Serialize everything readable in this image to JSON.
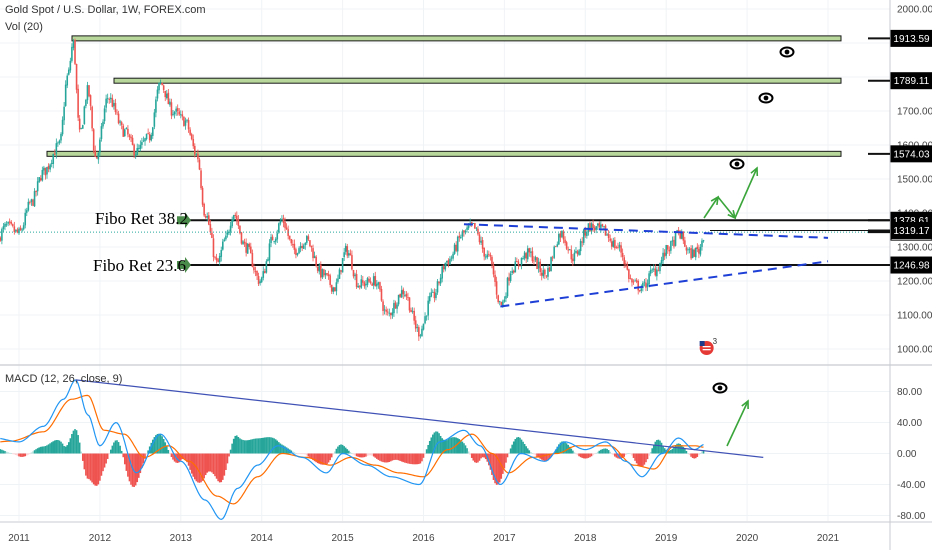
{
  "header": {
    "symbol_title": "Gold Spot / U.S. Dollar, 1W, FOREX.com",
    "volume_label": "Vol (20)",
    "macd_label": "MACD (12, 26, close, 9)"
  },
  "annotations": {
    "fibo_382": "Fibo Ret 38.2",
    "fibo_236": "Fibo Ret 23.6",
    "event_badge": "3"
  },
  "colors": {
    "up_candle": "#26a69a",
    "down_candle": "#ef5350",
    "resistance_fill": "#b7d89a",
    "trendline_dashed": "#1e3fd6",
    "arrow_green": "#3aa53a",
    "macd_line": "#2196f3",
    "signal_line": "#ff6d00",
    "macd_trendline": "#3f51b5",
    "last_price_line": "#26a69a"
  },
  "chart_data": [
    {
      "type": "candlestick",
      "title": "Gold Spot / U.S. Dollar, 1W, FOREX.com",
      "x_ticks": [
        "2011",
        "2012",
        "2013",
        "2014",
        "2015",
        "2016",
        "2017",
        "2018",
        "2019",
        "2020",
        "2021"
      ],
      "y_ticks": [
        1000,
        1100,
        1200,
        1300,
        1400,
        1500,
        1600,
        1700,
        1800,
        1900,
        2000
      ],
      "ylim": [
        950,
        2030
      ],
      "price_tags": [
        1913.59,
        1789.11,
        1574.03,
        1378.61,
        1343.79,
        1319.17,
        1246.98
      ],
      "last_price": 1343.79,
      "horizontal_levels": [
        {
          "value": 1913.59,
          "style": "zone"
        },
        {
          "value": 1789.11,
          "style": "zone"
        },
        {
          "value": 1574.03,
          "style": "zone"
        },
        {
          "value": 1378.61,
          "style": "line",
          "label": "Fibo Ret 38.2"
        },
        {
          "value": 1246.98,
          "style": "line",
          "label": "Fibo Ret 23.6"
        }
      ],
      "trendlines": [
        {
          "from": [
            2016.5,
            1367
          ],
          "to": [
            2021.0,
            1327
          ],
          "style": "dashed"
        },
        {
          "from": [
            2016.95,
            1125
          ],
          "to": [
            2021.0,
            1258
          ],
          "style": "dashed"
        }
      ],
      "anchors": [
        {
          "t": 2010.1,
          "v": 1120
        },
        {
          "t": 2010.3,
          "v": 1200
        },
        {
          "t": 2010.6,
          "v": 1260
        },
        {
          "t": 2010.85,
          "v": 1360
        },
        {
          "t": 2011.0,
          "v": 1340
        },
        {
          "t": 2011.15,
          "v": 1430
        },
        {
          "t": 2011.3,
          "v": 1520
        },
        {
          "t": 2011.5,
          "v": 1600
        },
        {
          "t": 2011.6,
          "v": 1800
        },
        {
          "t": 2011.67,
          "v": 1900
        },
        {
          "t": 2011.75,
          "v": 1630
        },
        {
          "t": 2011.85,
          "v": 1760
        },
        {
          "t": 2011.95,
          "v": 1560
        },
        {
          "t": 2012.1,
          "v": 1740
        },
        {
          "t": 2012.3,
          "v": 1640
        },
        {
          "t": 2012.45,
          "v": 1580
        },
        {
          "t": 2012.6,
          "v": 1620
        },
        {
          "t": 2012.75,
          "v": 1780
        },
        {
          "t": 2012.9,
          "v": 1700
        },
        {
          "t": 2013.05,
          "v": 1670
        },
        {
          "t": 2013.2,
          "v": 1570
        },
        {
          "t": 2013.3,
          "v": 1400
        },
        {
          "t": 2013.45,
          "v": 1250
        },
        {
          "t": 2013.55,
          "v": 1320
        },
        {
          "t": 2013.65,
          "v": 1400
        },
        {
          "t": 2013.8,
          "v": 1300
        },
        {
          "t": 2013.98,
          "v": 1200
        },
        {
          "t": 2014.15,
          "v": 1330
        },
        {
          "t": 2014.25,
          "v": 1380
        },
        {
          "t": 2014.4,
          "v": 1290
        },
        {
          "t": 2014.55,
          "v": 1320
        },
        {
          "t": 2014.75,
          "v": 1220
        },
        {
          "t": 2014.9,
          "v": 1180
        },
        {
          "t": 2015.05,
          "v": 1290
        },
        {
          "t": 2015.2,
          "v": 1190
        },
        {
          "t": 2015.4,
          "v": 1200
        },
        {
          "t": 2015.55,
          "v": 1100
        },
        {
          "t": 2015.75,
          "v": 1170
        },
        {
          "t": 2015.95,
          "v": 1050
        },
        {
          "t": 2016.1,
          "v": 1150
        },
        {
          "t": 2016.3,
          "v": 1260
        },
        {
          "t": 2016.5,
          "v": 1340
        },
        {
          "t": 2016.6,
          "v": 1360
        },
        {
          "t": 2016.8,
          "v": 1270
        },
        {
          "t": 2016.96,
          "v": 1130
        },
        {
          "t": 2017.1,
          "v": 1240
        },
        {
          "t": 2017.3,
          "v": 1280
        },
        {
          "t": 2017.5,
          "v": 1220
        },
        {
          "t": 2017.7,
          "v": 1340
        },
        {
          "t": 2017.85,
          "v": 1270
        },
        {
          "t": 2018.05,
          "v": 1360
        },
        {
          "t": 2018.2,
          "v": 1350
        },
        {
          "t": 2018.4,
          "v": 1300
        },
        {
          "t": 2018.6,
          "v": 1190
        },
        {
          "t": 2018.7,
          "v": 1180
        },
        {
          "t": 2018.85,
          "v": 1230
        },
        {
          "t": 2019.05,
          "v": 1300
        },
        {
          "t": 2019.15,
          "v": 1340
        },
        {
          "t": 2019.3,
          "v": 1280
        },
        {
          "t": 2019.4,
          "v": 1290
        },
        {
          "t": 2019.48,
          "v": 1344
        }
      ]
    },
    {
      "type": "line",
      "title": "MACD (12, 26, close, 9)",
      "y_ticks": [
        80.0,
        40.0,
        0.0,
        -40.0,
        -80.0
      ],
      "y_tick_labels": [
        "80.00",
        "40.00",
        "0.00",
        "-40.00",
        "-80.00"
      ],
      "ylim": [
        -88,
        110
      ],
      "series": [
        {
          "name": "MACD",
          "anchors": [
            {
              "t": 2010.1,
              "v": 25
            },
            {
              "t": 2010.4,
              "v": 10
            },
            {
              "t": 2010.7,
              "v": 20
            },
            {
              "t": 2011.0,
              "v": 15
            },
            {
              "t": 2011.3,
              "v": 35
            },
            {
              "t": 2011.55,
              "v": 70
            },
            {
              "t": 2011.7,
              "v": 95
            },
            {
              "t": 2011.85,
              "v": 50
            },
            {
              "t": 2012.0,
              "v": 10
            },
            {
              "t": 2012.2,
              "v": 40
            },
            {
              "t": 2012.45,
              "v": -25
            },
            {
              "t": 2012.75,
              "v": 25
            },
            {
              "t": 2013.0,
              "v": -10
            },
            {
              "t": 2013.3,
              "v": -60
            },
            {
              "t": 2013.5,
              "v": -85
            },
            {
              "t": 2013.7,
              "v": -45
            },
            {
              "t": 2013.95,
              "v": -15
            },
            {
              "t": 2014.2,
              "v": 10
            },
            {
              "t": 2014.5,
              "v": -5
            },
            {
              "t": 2014.8,
              "v": -25
            },
            {
              "t": 2015.0,
              "v": 0
            },
            {
              "t": 2015.3,
              "v": -15
            },
            {
              "t": 2015.6,
              "v": -30
            },
            {
              "t": 2015.95,
              "v": -40
            },
            {
              "t": 2016.2,
              "v": 15
            },
            {
              "t": 2016.5,
              "v": 30
            },
            {
              "t": 2016.7,
              "v": 10
            },
            {
              "t": 2016.95,
              "v": -40
            },
            {
              "t": 2017.2,
              "v": 0
            },
            {
              "t": 2017.5,
              "v": -10
            },
            {
              "t": 2017.75,
              "v": 15
            },
            {
              "t": 2018.0,
              "v": 5
            },
            {
              "t": 2018.25,
              "v": 15
            },
            {
              "t": 2018.5,
              "v": -10
            },
            {
              "t": 2018.7,
              "v": -30
            },
            {
              "t": 2018.95,
              "v": 0
            },
            {
              "t": 2019.15,
              "v": 20
            },
            {
              "t": 2019.35,
              "v": 5
            },
            {
              "t": 2019.48,
              "v": 12
            }
          ]
        },
        {
          "name": "Signal",
          "anchors": [
            {
              "t": 2010.1,
              "v": 20
            },
            {
              "t": 2010.5,
              "v": 12
            },
            {
              "t": 2010.9,
              "v": 16
            },
            {
              "t": 2011.3,
              "v": 28
            },
            {
              "t": 2011.65,
              "v": 70
            },
            {
              "t": 2011.85,
              "v": 75
            },
            {
              "t": 2012.05,
              "v": 30
            },
            {
              "t": 2012.3,
              "v": 25
            },
            {
              "t": 2012.55,
              "v": -5
            },
            {
              "t": 2012.85,
              "v": 10
            },
            {
              "t": 2013.1,
              "v": -10
            },
            {
              "t": 2013.45,
              "v": -55
            },
            {
              "t": 2013.65,
              "v": -65
            },
            {
              "t": 2013.95,
              "v": -30
            },
            {
              "t": 2014.25,
              "v": 0
            },
            {
              "t": 2014.55,
              "v": -5
            },
            {
              "t": 2014.85,
              "v": -15
            },
            {
              "t": 2015.1,
              "v": -5
            },
            {
              "t": 2015.4,
              "v": -15
            },
            {
              "t": 2015.7,
              "v": -25
            },
            {
              "t": 2016.0,
              "v": -30
            },
            {
              "t": 2016.3,
              "v": 5
            },
            {
              "t": 2016.6,
              "v": 25
            },
            {
              "t": 2016.85,
              "v": 0
            },
            {
              "t": 2017.05,
              "v": -25
            },
            {
              "t": 2017.35,
              "v": -5
            },
            {
              "t": 2017.65,
              "v": 0
            },
            {
              "t": 2017.9,
              "v": 10
            },
            {
              "t": 2018.3,
              "v": 10
            },
            {
              "t": 2018.6,
              "v": -15
            },
            {
              "t": 2018.85,
              "v": -20
            },
            {
              "t": 2019.1,
              "v": 10
            },
            {
              "t": 2019.35,
              "v": 10
            },
            {
              "t": 2019.48,
              "v": 8
            }
          ]
        }
      ],
      "trendlines": [
        {
          "from": [
            2011.7,
            95
          ],
          "to": [
            2020.2,
            -5
          ],
          "style": "solid"
        }
      ]
    }
  ]
}
